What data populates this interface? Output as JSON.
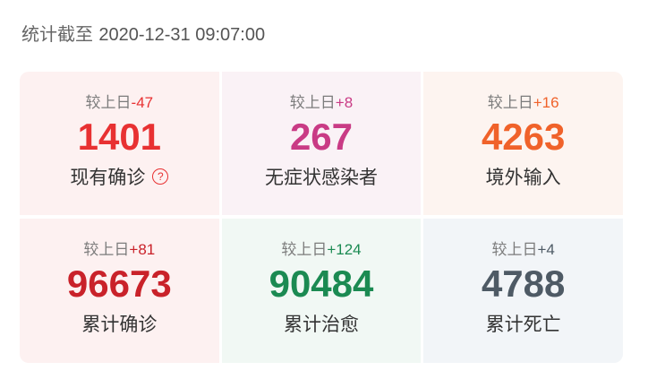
{
  "header": {
    "prefix": "统计截至",
    "datetime": "2020-12-31 09:07:00"
  },
  "delta_prefix": "较上日",
  "cards": [
    {
      "label": "现有确诊",
      "value": "1401",
      "delta": "-47",
      "color": "#e83132",
      "bg": "#fdf1f1",
      "help_icon": "question-circle-icon"
    },
    {
      "label": "无症状感染者",
      "value": "267",
      "delta": "+8",
      "color": "#c93b85",
      "bg": "#faf2f6"
    },
    {
      "label": "境外输入",
      "value": "4263",
      "delta": "+16",
      "color": "#f0622a",
      "bg": "#fdf4f0"
    },
    {
      "label": "累计确诊",
      "value": "96673",
      "delta": "+81",
      "color": "#c9222a",
      "bg": "#fdf1f1"
    },
    {
      "label": "累计治愈",
      "value": "90484",
      "delta": "+124",
      "color": "#1b8a52",
      "bg": "#f1f8f4"
    },
    {
      "label": "累计死亡",
      "value": "4788",
      "delta": "+4",
      "color": "#4e5a65",
      "bg": "#f2f5f8"
    }
  ]
}
